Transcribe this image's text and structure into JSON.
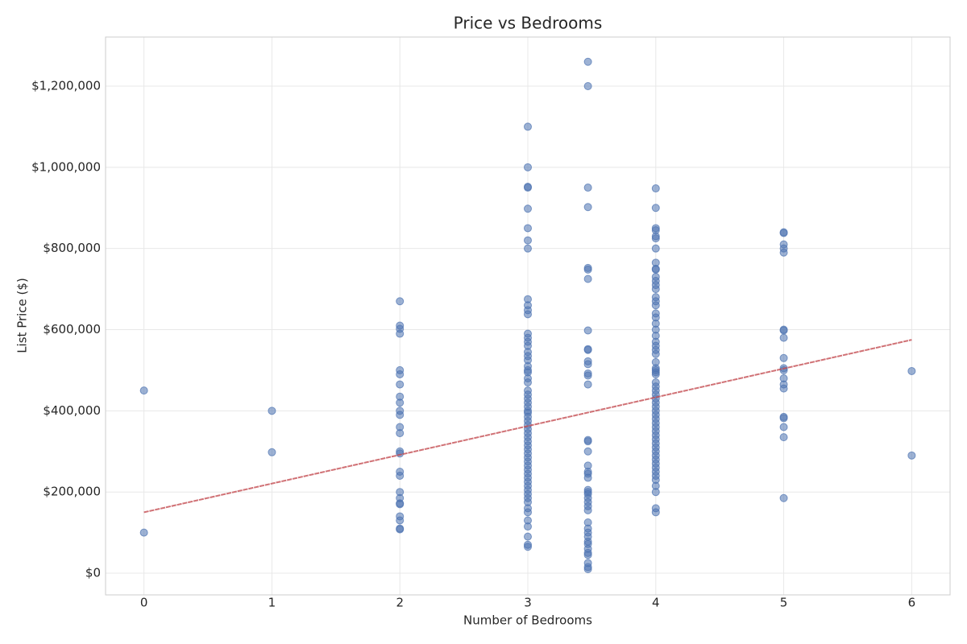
{
  "chart_data": {
    "type": "scatter",
    "title": "Price vs Bedrooms",
    "x_label": "Number of Bedrooms",
    "y_label": "List Price ($)",
    "color": "#4c72b0",
    "trend_line": {
      "x": [
        0,
        6
      ],
      "y": [
        150000,
        575000
      ],
      "color": "#c44e52"
    },
    "grid": true,
    "xlim": [
      -0.3,
      6.3
    ],
    "ylim": [
      -53500,
      1321000
    ],
    "xticks": [
      0,
      1,
      2,
      3,
      4,
      5,
      6
    ],
    "yticks": [
      {
        "value": 0,
        "label": "$0"
      },
      {
        "value": 200000,
        "label": "$200,000"
      },
      {
        "value": 400000,
        "label": "$400,000"
      },
      {
        "value": 600000,
        "label": "$600,000"
      },
      {
        "value": 800000,
        "label": "$800,000"
      },
      {
        "value": 1000000,
        "label": "$1,000,000"
      },
      {
        "value": 1200000,
        "label": "$1,200,000"
      }
    ],
    "x": [
      0,
      0,
      1,
      1,
      2,
      2,
      2,
      2,
      2,
      2,
      2,
      2,
      2,
      2,
      2,
      2,
      2,
      2,
      2,
      2,
      2,
      2,
      2,
      2,
      2,
      2,
      2,
      2,
      2,
      3,
      3,
      3,
      3,
      3,
      3,
      3,
      3,
      3,
      3,
      3,
      3,
      3,
      3,
      3,
      3,
      3,
      3,
      3,
      3,
      3,
      3,
      3,
      3,
      3,
      3,
      3,
      3,
      3,
      3,
      3,
      3,
      3,
      3,
      3,
      3,
      3,
      3,
      3,
      3,
      3,
      3,
      3,
      3,
      3,
      3,
      3,
      3,
      3,
      3,
      3,
      3,
      3,
      3,
      3,
      3,
      3,
      3,
      3,
      3,
      3.47,
      3.47,
      3.47,
      3.47,
      3.47,
      3.47,
      3.47,
      3.47,
      3.47,
      3.47,
      3.47,
      3.47,
      3.47,
      3.47,
      3.47,
      3.47,
      3.47,
      3.47,
      3.47,
      3.47,
      3.47,
      3.47,
      3.47,
      3.47,
      3.47,
      3.47,
      3.47,
      3.47,
      3.47,
      3.47,
      3.47,
      3.47,
      3.47,
      3.47,
      3.47,
      3.47,
      3.47,
      3.47,
      3.47,
      3.47,
      3.47,
      4,
      4,
      4,
      4,
      4,
      4,
      4,
      4,
      4,
      4,
      4,
      4,
      4,
      4,
      4,
      4,
      4,
      4,
      4,
      4,
      4,
      4,
      4,
      4,
      4,
      4,
      4,
      4,
      4,
      4,
      4,
      4,
      4,
      4,
      4,
      4,
      4,
      4,
      4,
      4,
      4,
      4,
      4,
      4,
      4,
      4,
      4,
      4,
      4,
      4,
      4,
      4,
      4,
      4,
      4,
      4,
      4,
      4,
      4,
      4,
      5,
      5,
      5,
      5,
      5,
      5,
      5,
      5,
      5,
      5,
      5,
      5,
      5,
      5,
      5,
      5,
      5,
      5,
      5,
      6,
      6
    ],
    "values": [
      450000,
      100000,
      400000,
      298000,
      670000,
      610000,
      602000,
      590000,
      500000,
      490000,
      465000,
      435000,
      420000,
      400000,
      390000,
      360000,
      345000,
      300000,
      295000,
      250000,
      240000,
      200000,
      185000,
      172000,
      170000,
      140000,
      130000,
      110000,
      108000,
      1100000,
      1000000,
      952000,
      950000,
      898000,
      850000,
      820000,
      800000,
      675000,
      660000,
      648000,
      638000,
      590000,
      580000,
      570000,
      560000,
      545000,
      535000,
      525000,
      510000,
      500000,
      495000,
      480000,
      470000,
      450000,
      440000,
      430000,
      420000,
      410000,
      400000,
      395000,
      385000,
      375000,
      365000,
      355000,
      345000,
      335000,
      325000,
      315000,
      305000,
      295000,
      285000,
      275000,
      265000,
      255000,
      245000,
      235000,
      225000,
      215000,
      205000,
      195000,
      185000,
      175000,
      160000,
      150000,
      130000,
      115000,
      90000,
      70000,
      65000,
      1260000,
      1200000,
      950000,
      902000,
      752000,
      748000,
      725000,
      598000,
      552000,
      550000,
      522000,
      515000,
      492000,
      487000,
      465000,
      328000,
      325000,
      300000,
      265000,
      250000,
      245000,
      235000,
      205000,
      200000,
      195000,
      185000,
      175000,
      165000,
      155000,
      125000,
      110000,
      100000,
      90000,
      78000,
      72000,
      60000,
      50000,
      45000,
      25000,
      15000,
      10000,
      948000,
      900000,
      850000,
      845000,
      830000,
      825000,
      800000,
      765000,
      750000,
      748000,
      730000,
      720000,
      710000,
      700000,
      680000,
      670000,
      660000,
      640000,
      630000,
      615000,
      600000,
      585000,
      570000,
      560000,
      550000,
      540000,
      520000,
      505000,
      500000,
      495000,
      490000,
      470000,
      460000,
      450000,
      440000,
      430000,
      420000,
      410000,
      400000,
      390000,
      380000,
      370000,
      360000,
      350000,
      340000,
      330000,
      320000,
      310000,
      300000,
      290000,
      280000,
      270000,
      260000,
      250000,
      240000,
      230000,
      215000,
      200000,
      160000,
      150000,
      840000,
      838000,
      810000,
      800000,
      790000,
      600000,
      598000,
      580000,
      530000,
      505000,
      500000,
      480000,
      465000,
      455000,
      385000,
      382000,
      360000,
      335000,
      185000,
      498000,
      290000
    ]
  }
}
